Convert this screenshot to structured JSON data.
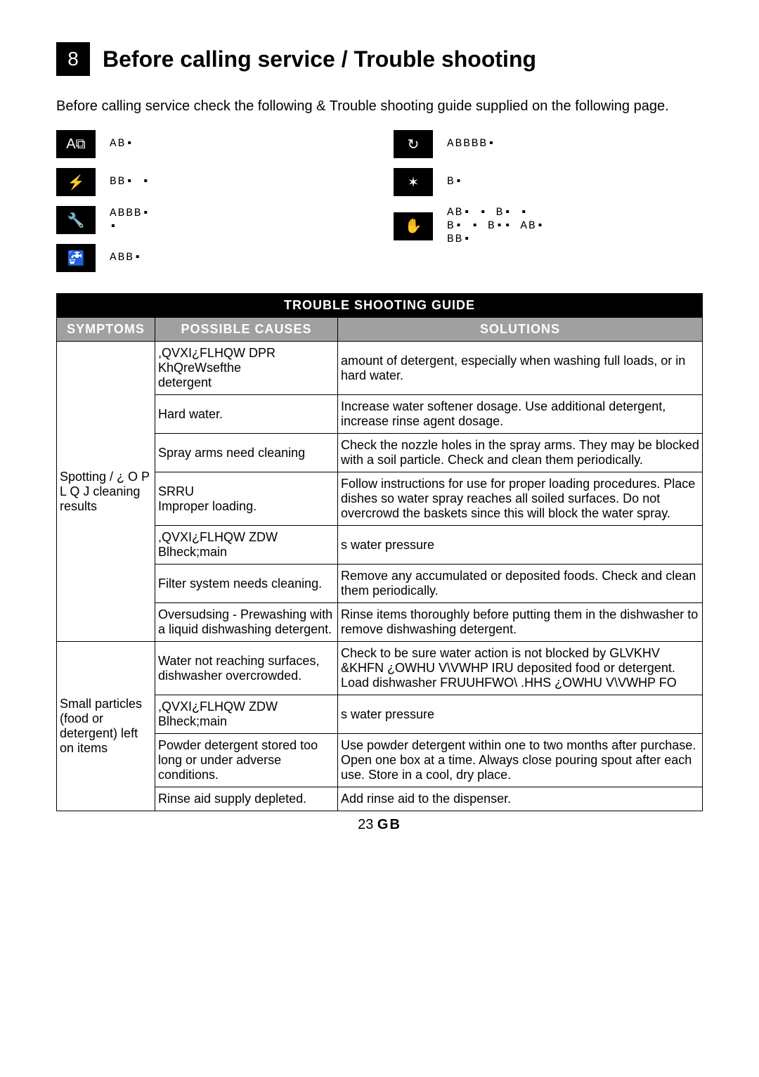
{
  "chapter_number": "8",
  "heading": "Before calling service / Trouble shooting",
  "intro": "Before calling service check the following & Trouble shooting guide supplied on the following page.",
  "icons_left": [
    {
      "glyph": "A⧉",
      "label": "AB▪"
    },
    {
      "glyph": "⚡",
      "label": "BB▪                      ▪"
    },
    {
      "glyph": "🔧",
      "label": "ABBB▪\n▪"
    },
    {
      "glyph": "🚰",
      "label": "ABB▪"
    }
  ],
  "icons_right": [
    {
      "glyph": "↻",
      "label": "ABBBB▪"
    },
    {
      "glyph": "✶",
      "label": "B▪"
    },
    {
      "glyph": "✋",
      "label": "AB▪  ▪      B▪  ▪\nB▪  ▪ B▪▪   AB▪\nBB▪"
    }
  ],
  "table": {
    "caption": "TROUBLE SHOOTING GUIDE",
    "headers": [
      "SYMPTOMS",
      "POSSIBLE CAUSES",
      "SOLUTIONS"
    ],
    "groups": [
      {
        "symptom": "Spotting / ¿ O P L Q J cleaning results",
        "rows": [
          {
            "cause": ",QVXI¿FLHQW DPR KhQreWsefthe\ndetergent",
            "solution": "amount of detergent, especially when washing full loads, or in hard water."
          },
          {
            "cause": "Hard water.",
            "solution": "Increase water softener dosage. Use additional detergent, increase rinse agent dosage."
          },
          {
            "cause": "Spray arms need cleaning",
            "solution": "Check the nozzle holes in the spray arms. They may be blocked with a soil particle. Check and clean them periodically."
          },
          {
            "cause": "SRRU\nImproper loading.",
            "solution": "Follow instructions for use for proper loading procedures. Place dishes so water spray reaches all soiled surfaces. Do not overcrowd the baskets since this will block the water spray."
          },
          {
            "cause": ",QVXI¿FLHQW ZDW Blheck;main",
            "solution": "s water pressure"
          },
          {
            "cause": "Filter system needs cleaning.",
            "solution": "Remove any accumulated or deposited foods. Check and clean them periodically."
          },
          {
            "cause": "Oversudsing - Prewashing with a liquid dishwashing detergent.",
            "solution": "Rinse items thoroughly before putting them in the dishwasher to remove dishwashing detergent."
          }
        ]
      },
      {
        "symptom": "Small particles (food or detergent) left on items",
        "rows": [
          {
            "cause": "Water not reaching surfaces, dishwasher overcrowded.",
            "solution": "Check to be sure water action is not blocked by GLVKHV  &KHFN ¿OWHU V\\VWHP IRU deposited food or detergent. Load dishwasher FRUUHFWO\\  .HHS ¿OWHU V\\VWHP FO"
          },
          {
            "cause": ",QVXI¿FLHQW ZDW Blheck;main",
            "solution": "s water pressure"
          },
          {
            "cause": "Powder detergent stored too long or under adverse conditions.",
            "solution": "Use powder detergent within one to two months after purchase. Open one box at a time. Always close pouring spout after each use. Store in a cool, dry place."
          },
          {
            "cause": "Rinse aid supply depleted.",
            "solution": "Add rinse aid to the dispenser."
          }
        ]
      }
    ]
  },
  "footer_page": "23",
  "footer_region": "GB"
}
